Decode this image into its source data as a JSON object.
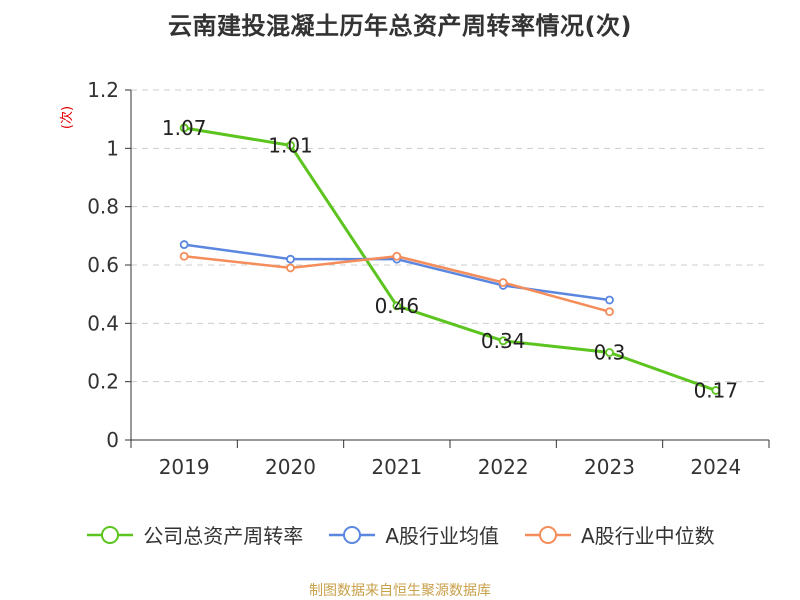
{
  "title": "云南建投混凝土历年总资产周转率情况(次)",
  "source": "制图数据来自恒生聚源数据库",
  "chart_data": {
    "type": "line",
    "title": "云南建投混凝土历年总资产周转率情况(次)",
    "ylabel": "(次)",
    "xlabel": "",
    "categories": [
      "2019",
      "2020",
      "2021",
      "2022",
      "2023",
      "2024"
    ],
    "ylim": [
      0,
      1.2
    ],
    "yticks": [
      0,
      0.2,
      0.4,
      0.6,
      0.8,
      1,
      1.2
    ],
    "ytick_labels": [
      "0",
      "0.2",
      "0.4",
      "0.6",
      "0.8",
      "1",
      "1.2"
    ],
    "grid": true,
    "legend": "bottom",
    "series": [
      {
        "name": "公司总资产周转率",
        "color": "#5cc41e",
        "values": [
          1.07,
          1.01,
          0.46,
          0.34,
          0.3,
          0.17
        ],
        "labels": [
          "1.07",
          "1.01",
          "0.46",
          "0.34",
          "0.3",
          "0.17"
        ]
      },
      {
        "name": "A股行业均值",
        "color": "#5b87e0",
        "values": [
          0.67,
          0.62,
          0.62,
          0.53,
          0.48,
          null
        ]
      },
      {
        "name": "A股行业中位数",
        "color": "#f58d5b",
        "values": [
          0.63,
          0.59,
          0.63,
          0.54,
          0.44,
          null
        ]
      }
    ]
  }
}
